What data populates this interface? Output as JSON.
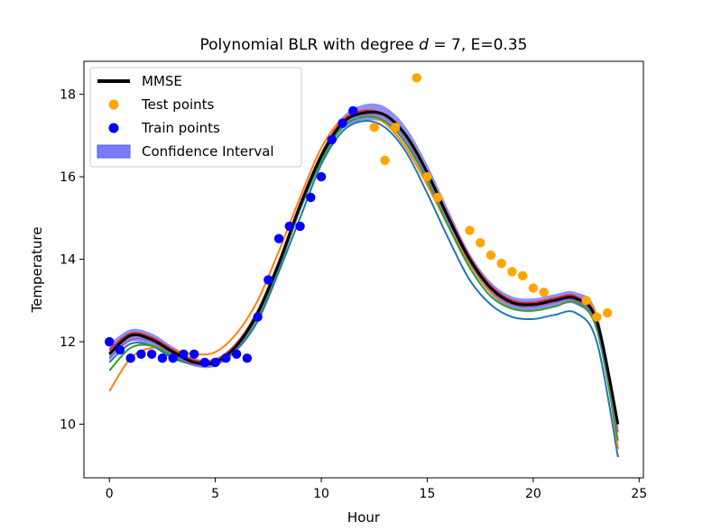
{
  "chart_data": {
    "type": "line",
    "title_main": "Polynomial BLR with degree ",
    "title_var": "d",
    "title_rest": " = 7, E=0.35",
    "xlabel": "Hour",
    "ylabel": "Temperature",
    "xlim": [
      -1.2,
      25.2
    ],
    "ylim": [
      8.7,
      18.8
    ],
    "xticks": [
      0,
      5,
      10,
      15,
      20,
      25
    ],
    "yticks": [
      10,
      12,
      14,
      16,
      18
    ],
    "grid": false,
    "legend_placement": "top-left",
    "legend": [
      {
        "label": "MMSE",
        "kind": "line",
        "color": "#000000"
      },
      {
        "label": "Test points",
        "kind": "marker",
        "color": "#ffa500"
      },
      {
        "label": "Train points",
        "kind": "marker",
        "color": "#0000ff"
      },
      {
        "label": "Confidence Interval",
        "kind": "patch",
        "color": "#7b7bf5"
      }
    ],
    "train_points": {
      "color": "#0000ff",
      "x": [
        0,
        0.5,
        1,
        1.5,
        2,
        2.5,
        3,
        3.5,
        4,
        4.5,
        5,
        5.5,
        6,
        6.5,
        7,
        7.5,
        8,
        8.5,
        9,
        9.5,
        10,
        10.5,
        11,
        11.5
      ],
      "y": [
        12.0,
        11.8,
        11.6,
        11.7,
        11.7,
        11.6,
        11.6,
        11.7,
        11.7,
        11.5,
        11.5,
        11.6,
        11.7,
        11.6,
        12.6,
        13.5,
        14.5,
        14.8,
        14.8,
        15.5,
        16.0,
        16.9,
        17.3,
        17.6
      ]
    },
    "test_points": {
      "color": "#ffa500",
      "x": [
        12.5,
        13,
        13.5,
        14.5,
        15,
        15.5,
        17,
        17.5,
        18,
        18.5,
        19,
        19.5,
        20,
        20.5,
        22.5,
        23,
        23.5
      ],
      "y": [
        17.2,
        16.4,
        17.2,
        18.4,
        16.0,
        15.5,
        14.7,
        14.4,
        14.1,
        13.9,
        13.7,
        13.6,
        13.3,
        13.2,
        13.0,
        12.6,
        12.7
      ]
    },
    "mmse": {
      "color": "#000000",
      "x": [
        0,
        1,
        2,
        3,
        4,
        5,
        6,
        7,
        8,
        9,
        10,
        11,
        12,
        13,
        14,
        15,
        16,
        17,
        18,
        19,
        20,
        21,
        22,
        23,
        24
      ],
      "y": [
        11.7,
        12.15,
        12.05,
        11.75,
        11.5,
        11.5,
        11.9,
        12.7,
        13.9,
        15.3,
        16.5,
        17.3,
        17.55,
        17.5,
        17.0,
        16.1,
        15.0,
        14.0,
        13.3,
        12.95,
        12.9,
        13.0,
        13.05,
        12.5,
        10.0
      ]
    },
    "confidence_band": {
      "color": "#7b7bf5",
      "x": [
        0,
        1,
        2,
        3,
        4,
        5,
        6,
        7,
        8,
        9,
        10,
        11,
        12,
        13,
        14,
        15,
        16,
        17,
        18,
        19,
        20,
        21,
        22,
        23,
        24
      ],
      "lower": [
        11.55,
        12.0,
        11.9,
        11.62,
        11.4,
        11.4,
        11.8,
        12.6,
        13.8,
        15.2,
        16.4,
        17.15,
        17.35,
        17.3,
        16.8,
        15.9,
        14.85,
        13.85,
        13.15,
        12.8,
        12.75,
        12.85,
        12.9,
        12.3,
        9.9
      ],
      "upper": [
        11.95,
        12.3,
        12.2,
        11.88,
        11.6,
        11.6,
        12.0,
        12.8,
        14.0,
        15.4,
        16.6,
        17.45,
        17.75,
        17.7,
        17.2,
        16.3,
        15.2,
        14.15,
        13.45,
        13.1,
        13.05,
        13.15,
        13.2,
        12.7,
        10.1
      ]
    },
    "sample_curves": [
      {
        "color": "#1f77b4",
        "x": [
          0,
          1,
          2,
          3,
          4,
          5,
          6,
          7,
          8,
          9,
          10,
          11,
          12,
          13,
          14,
          15,
          16,
          17,
          18,
          19,
          20,
          21,
          22,
          23,
          24
        ],
        "y": [
          11.5,
          11.95,
          11.9,
          11.6,
          11.45,
          11.45,
          11.8,
          12.5,
          13.7,
          15.0,
          16.3,
          17.1,
          17.35,
          17.2,
          16.6,
          15.6,
          14.5,
          13.5,
          12.9,
          12.6,
          12.55,
          12.65,
          12.7,
          12.0,
          9.2
        ]
      },
      {
        "color": "#ff7f0e",
        "x": [
          0,
          1,
          2,
          3,
          4,
          5,
          6,
          7,
          8,
          9,
          10,
          11,
          12,
          13,
          14,
          15,
          16,
          17,
          18,
          19,
          20,
          21,
          22,
          23,
          24
        ],
        "y": [
          10.8,
          11.6,
          11.85,
          11.8,
          11.7,
          11.75,
          12.2,
          13.0,
          14.2,
          15.5,
          16.7,
          17.4,
          17.5,
          17.3,
          16.7,
          15.8,
          14.8,
          13.9,
          13.2,
          12.9,
          12.9,
          13.0,
          13.05,
          12.6,
          9.4
        ]
      },
      {
        "color": "#2ca02c",
        "x": [
          0,
          1,
          2,
          3,
          4,
          5,
          6,
          7,
          8,
          9,
          10,
          11,
          12,
          13,
          14,
          15,
          16,
          17,
          18,
          19,
          20,
          21,
          22,
          23,
          24
        ],
        "y": [
          11.3,
          11.85,
          11.9,
          11.65,
          11.45,
          11.45,
          11.85,
          12.6,
          13.8,
          15.2,
          16.4,
          17.2,
          17.45,
          17.35,
          16.8,
          15.9,
          14.8,
          13.8,
          13.1,
          12.8,
          12.75,
          12.85,
          12.95,
          12.3,
          9.6
        ]
      },
      {
        "color": "#d62728",
        "x": [
          0,
          1,
          2,
          3,
          4,
          5,
          6,
          7,
          8,
          9,
          10,
          11,
          12,
          13,
          14,
          15,
          16,
          17,
          18,
          19,
          20,
          21,
          22,
          23,
          24
        ],
        "y": [
          11.8,
          12.2,
          12.1,
          11.8,
          11.55,
          11.55,
          11.95,
          12.75,
          13.95,
          15.35,
          16.55,
          17.35,
          17.6,
          17.5,
          17.0,
          16.1,
          15.05,
          14.05,
          13.35,
          13.0,
          12.95,
          13.05,
          13.1,
          12.5,
          10.0
        ]
      },
      {
        "color": "#9467bd",
        "x": [
          0,
          1,
          2,
          3,
          4,
          5,
          6,
          7,
          8,
          9,
          10,
          11,
          12,
          13,
          14,
          15,
          16,
          17,
          18,
          19,
          20,
          21,
          22,
          23,
          24
        ],
        "y": [
          11.6,
          12.05,
          12.0,
          11.7,
          11.45,
          11.45,
          11.85,
          12.65,
          13.85,
          15.25,
          16.5,
          17.3,
          17.5,
          17.45,
          16.9,
          16.0,
          14.95,
          13.95,
          13.25,
          12.9,
          12.85,
          12.95,
          13.0,
          12.4,
          9.8
        ]
      }
    ]
  }
}
